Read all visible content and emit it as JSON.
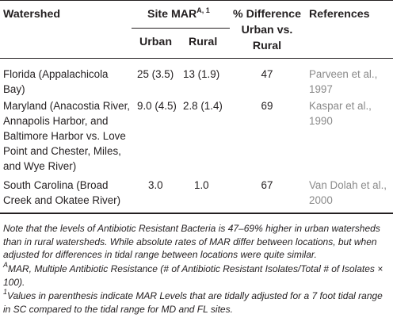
{
  "header": {
    "watershed": "Watershed",
    "site_mar": "Site MAR",
    "site_mar_sup": "A, 1",
    "urban": "Urban",
    "rural": "Rural",
    "pct_diff_line1": "% Difference",
    "pct_diff_line2": "Urban vs.",
    "pct_diff_line3": "Rural",
    "references": "References"
  },
  "rows": [
    {
      "watershed": [
        "Florida (Appalachicola",
        "Bay)"
      ],
      "urban": "25 (3.5)",
      "rural": "13 (1.9)",
      "pct": "47",
      "reference": [
        "Parveen et al.,",
        "1997"
      ]
    },
    {
      "watershed": [
        "Maryland (Anacostia River,",
        "Annapolis Harbor, and",
        "Baltimore Harbor vs. Love",
        "Point and Chester, Miles,",
        "and Wye River)"
      ],
      "urban": "9.0 (4.5)",
      "rural": "2.8 (1.4)",
      "pct": "69",
      "reference": [
        "Kaspar et al.,",
        "1990"
      ]
    },
    {
      "watershed": [
        "South Carolina (Broad",
        "Creek and Okatee River)"
      ],
      "urban": "3.0",
      "rural": "1.0",
      "pct": "67",
      "reference": [
        "Van Dolah et al.,",
        "2000"
      ]
    }
  ],
  "notes": {
    "main": "Note that the levels of Antibiotic Resistant Bacteria is 47–69% higher in urban watersheds than in rural watersheds. While absolute rates of MAR differ between locations, but when adjusted for differences in tidal range between locations were quite similar.",
    "a_mark": "A",
    "a_text": "MAR, Multiple Antibiotic Resistance (# of Antibiotic Resistant Isolates/Total # of Isolates × 100).",
    "one_mark": "1",
    "one_text": "Values in parenthesis indicate MAR Levels that are tidally adjusted for a 7 foot tidal range in SC compared to the tidal range for MD and FL sites."
  }
}
